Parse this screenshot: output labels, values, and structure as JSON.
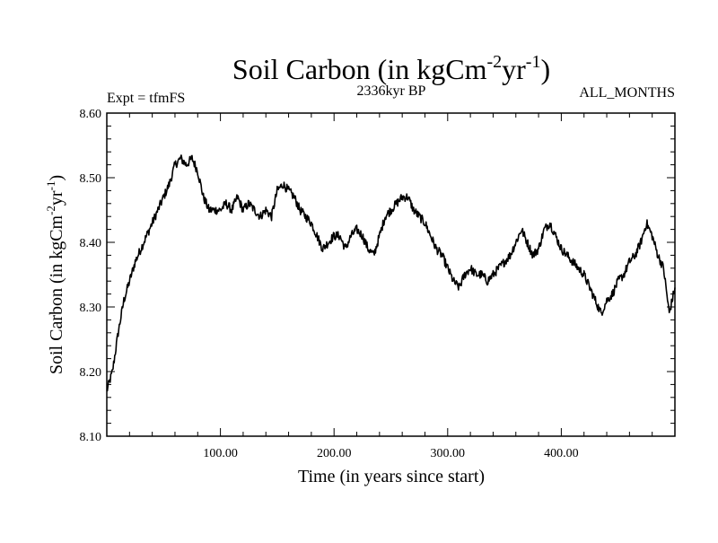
{
  "chart_data": {
    "type": "line",
    "title": "Soil Carbon (in kgCm-2yr-1)",
    "title_parts": {
      "base": "Soil Carbon (in kgCm",
      "sup1": "-2",
      "mid": "yr",
      "sup2": "-1",
      "end": ")"
    },
    "subtitle_left": "Expt = tfmFS",
    "subtitle_center": "2336kyr BP",
    "subtitle_right": "ALL_MONTHS",
    "xlabel": "Time (in years since start)",
    "ylabel": "Soil Carbon (in kgCm-2yr-1)",
    "ylabel_parts": {
      "base": "Soil Carbon (in kgCm",
      "sup1": "-2",
      "mid": "yr",
      "sup2": "-1",
      "end": ")"
    },
    "xlim": [
      0,
      500
    ],
    "ylim": [
      8.1,
      8.6
    ],
    "xticks": [
      100,
      200,
      300,
      400
    ],
    "xtick_labels": [
      "100.00",
      "200.00",
      "300.00",
      "400.00"
    ],
    "yticks": [
      8.1,
      8.2,
      8.3,
      8.4,
      8.5,
      8.6
    ],
    "ytick_labels": [
      "8.10",
      "8.20",
      "8.30",
      "8.40",
      "8.50",
      "8.60"
    ],
    "grid": false,
    "series": [
      {
        "color": "#000000",
        "x": [
          0,
          5,
          10,
          15,
          20,
          25,
          30,
          35,
          40,
          45,
          50,
          55,
          60,
          65,
          70,
          75,
          80,
          85,
          90,
          95,
          100,
          105,
          110,
          115,
          120,
          125,
          130,
          135,
          140,
          145,
          150,
          155,
          160,
          165,
          170,
          175,
          180,
          185,
          190,
          195,
          200,
          205,
          210,
          215,
          220,
          225,
          230,
          235,
          240,
          245,
          250,
          255,
          260,
          265,
          270,
          275,
          280,
          285,
          290,
          295,
          300,
          305,
          310,
          315,
          320,
          325,
          330,
          335,
          340,
          345,
          350,
          355,
          360,
          365,
          370,
          375,
          380,
          385,
          390,
          395,
          400,
          405,
          410,
          415,
          420,
          425,
          430,
          435,
          440,
          445,
          450,
          455,
          460,
          465,
          470,
          475,
          480,
          485,
          490,
          495,
          500
        ],
        "y": [
          8.17,
          8.2,
          8.26,
          8.31,
          8.34,
          8.37,
          8.39,
          8.41,
          8.43,
          8.45,
          8.47,
          8.49,
          8.52,
          8.53,
          8.52,
          8.53,
          8.51,
          8.47,
          8.45,
          8.45,
          8.45,
          8.46,
          8.45,
          8.47,
          8.45,
          8.46,
          8.45,
          8.44,
          8.45,
          8.44,
          8.48,
          8.49,
          8.48,
          8.47,
          8.45,
          8.44,
          8.43,
          8.41,
          8.39,
          8.4,
          8.41,
          8.41,
          8.39,
          8.41,
          8.42,
          8.41,
          8.39,
          8.38,
          8.41,
          8.44,
          8.45,
          8.46,
          8.47,
          8.47,
          8.45,
          8.44,
          8.43,
          8.41,
          8.39,
          8.38,
          8.36,
          8.34,
          8.33,
          8.35,
          8.36,
          8.35,
          8.35,
          8.34,
          8.35,
          8.36,
          8.37,
          8.38,
          8.4,
          8.42,
          8.4,
          8.38,
          8.39,
          8.42,
          8.43,
          8.41,
          8.39,
          8.38,
          8.37,
          8.36,
          8.35,
          8.33,
          8.31,
          8.29,
          8.31,
          8.32,
          8.34,
          8.35,
          8.37,
          8.38,
          8.4,
          8.43,
          8.41,
          8.38,
          8.36,
          8.29,
          8.33
        ]
      }
    ]
  }
}
